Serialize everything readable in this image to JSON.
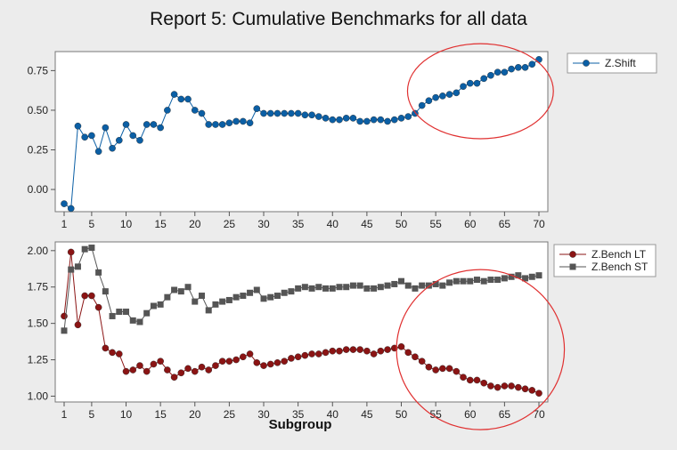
{
  "title": "Report 5: Cumulative Benchmarks for all data",
  "xlabel": "Subgroup",
  "chart_data": [
    {
      "type": "line",
      "panel": "top",
      "xlim": [
        1,
        70
      ],
      "ylim": [
        -0.14,
        0.87
      ],
      "x_ticks": [
        1,
        5,
        10,
        15,
        20,
        25,
        30,
        35,
        40,
        45,
        50,
        55,
        60,
        65,
        70
      ],
      "y_ticks": [
        "0.00",
        "0.25",
        "0.50",
        "0.75"
      ],
      "legend_position": "right",
      "series": [
        {
          "name": "Z.Shift",
          "color": "#0b5fa5",
          "marker": "circle",
          "values": [
            -0.09,
            -0.12,
            0.4,
            0.33,
            0.34,
            0.24,
            0.39,
            0.26,
            0.31,
            0.41,
            0.34,
            0.31,
            0.41,
            0.41,
            0.39,
            0.5,
            0.6,
            0.57,
            0.57,
            0.5,
            0.48,
            0.41,
            0.41,
            0.41,
            0.42,
            0.43,
            0.43,
            0.42,
            0.51,
            0.48,
            0.48,
            0.48,
            0.48,
            0.48,
            0.48,
            0.47,
            0.47,
            0.46,
            0.45,
            0.44,
            0.44,
            0.45,
            0.45,
            0.43,
            0.43,
            0.44,
            0.44,
            0.43,
            0.44,
            0.45,
            0.46,
            0.48,
            0.53,
            0.56,
            0.58,
            0.59,
            0.6,
            0.61,
            0.65,
            0.67,
            0.67,
            0.7,
            0.72,
            0.74,
            0.74,
            0.76,
            0.77,
            0.77,
            0.79,
            0.82
          ]
        }
      ],
      "annotation": {
        "type": "ellipse",
        "color": "#e03030",
        "cx": 61.5,
        "cy": 0.62,
        "rx": 10.6,
        "ry": 0.3
      }
    },
    {
      "type": "line",
      "panel": "bottom",
      "xlim": [
        1,
        70
      ],
      "ylim": [
        0.96,
        2.06
      ],
      "x_ticks": [
        1,
        5,
        10,
        15,
        20,
        25,
        30,
        35,
        40,
        45,
        50,
        55,
        60,
        65,
        70
      ],
      "y_ticks": [
        "1.00",
        "1.25",
        "1.50",
        "1.75",
        "2.00"
      ],
      "legend_position": "right",
      "series": [
        {
          "name": "Z.Bench LT",
          "color": "#8b1414",
          "marker": "circle",
          "values": [
            1.55,
            1.99,
            1.49,
            1.69,
            1.69,
            1.61,
            1.33,
            1.3,
            1.29,
            1.17,
            1.18,
            1.21,
            1.17,
            1.22,
            1.24,
            1.18,
            1.13,
            1.16,
            1.19,
            1.17,
            1.2,
            1.18,
            1.21,
            1.24,
            1.24,
            1.25,
            1.27,
            1.29,
            1.23,
            1.21,
            1.22,
            1.23,
            1.24,
            1.26,
            1.27,
            1.28,
            1.29,
            1.29,
            1.3,
            1.31,
            1.31,
            1.32,
            1.32,
            1.32,
            1.31,
            1.29,
            1.31,
            1.32,
            1.33,
            1.34,
            1.3,
            1.27,
            1.24,
            1.2,
            1.18,
            1.19,
            1.19,
            1.17,
            1.13,
            1.11,
            1.11,
            1.09,
            1.07,
            1.06,
            1.07,
            1.07,
            1.06,
            1.05,
            1.04,
            1.02
          ]
        },
        {
          "name": "Z.Bench ST",
          "color": "#555555",
          "marker": "square",
          "values": [
            1.45,
            1.87,
            1.89,
            2.01,
            2.02,
            1.85,
            1.72,
            1.55,
            1.58,
            1.58,
            1.52,
            1.51,
            1.57,
            1.62,
            1.63,
            1.68,
            1.73,
            1.72,
            1.75,
            1.65,
            1.69,
            1.59,
            1.63,
            1.65,
            1.66,
            1.68,
            1.69,
            1.71,
            1.73,
            1.67,
            1.68,
            1.69,
            1.71,
            1.72,
            1.74,
            1.75,
            1.74,
            1.75,
            1.74,
            1.74,
            1.75,
            1.75,
            1.76,
            1.76,
            1.74,
            1.74,
            1.75,
            1.76,
            1.77,
            1.79,
            1.76,
            1.74,
            1.76,
            1.76,
            1.77,
            1.76,
            1.78,
            1.79,
            1.79,
            1.79,
            1.8,
            1.79,
            1.8,
            1.8,
            1.81,
            1.82,
            1.83,
            1.81,
            1.82,
            1.83
          ]
        }
      ],
      "annotation": {
        "type": "ellipse",
        "color": "#e03030",
        "cx": 61.5,
        "cy": 1.32,
        "rx": 12.2,
        "ry": 0.55
      }
    }
  ]
}
